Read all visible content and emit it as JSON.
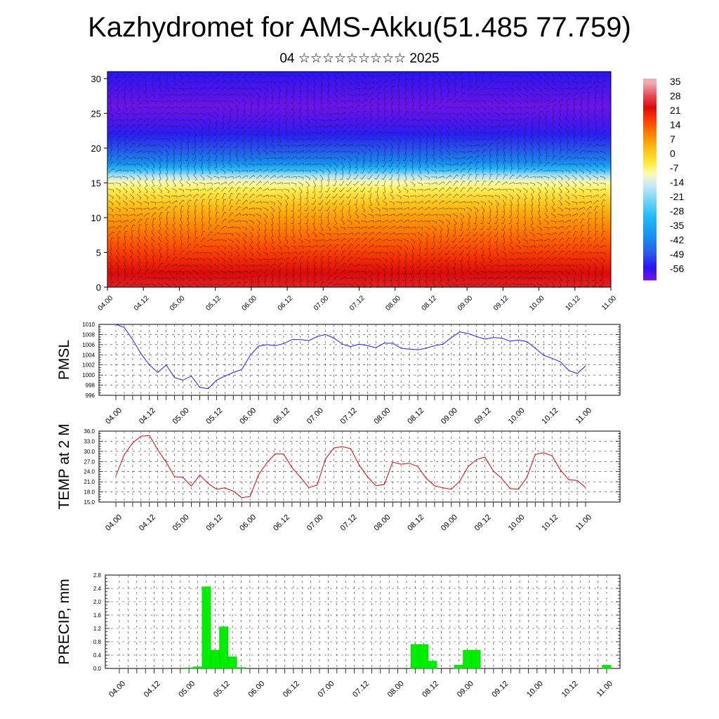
{
  "title": "Kazhydromet for AMS-Akku(51.485 77.759)",
  "subtitle": "04 ☆☆☆☆☆☆☆☆☆ 2025",
  "time_labels": [
    "04.00",
    "04.12",
    "05.00",
    "05.12",
    "06.00",
    "06.12",
    "07.00",
    "07.12",
    "08.00",
    "08.12",
    "09.00",
    "09.12",
    "10.00",
    "10.12",
    "11.00"
  ],
  "chart_data": [
    {
      "type": "heatmap",
      "name": "",
      "x": [
        "04.00",
        "04.12",
        "05.00",
        "05.12",
        "06.00",
        "06.12",
        "07.00",
        "07.12",
        "08.00",
        "08.12",
        "09.00",
        "09.12",
        "10.00",
        "10.12",
        "11.00"
      ],
      "ylim": [
        0,
        31
      ],
      "yticks": [
        0,
        5,
        10,
        15,
        20,
        25,
        30
      ],
      "overlay": "wind barbs",
      "colorbar": {
        "labels": [
          "35",
          "28",
          "21",
          "14",
          "7",
          "0",
          "-7",
          "-14",
          "-21",
          "-28",
          "-35",
          "-42",
          "-49",
          "-56"
        ],
        "range": [
          -60,
          38
        ]
      },
      "profile": {
        "levels": [
          0,
          2,
          4,
          6,
          8,
          10,
          12,
          14,
          15,
          16,
          17,
          18,
          20,
          22,
          24,
          26,
          28,
          31
        ],
        "values": [
          26,
          24,
          20,
          16,
          12,
          8,
          3,
          -4,
          -8,
          -16,
          -30,
          -40,
          -48,
          -53,
          -57,
          -59,
          -57,
          -54
        ]
      }
    },
    {
      "type": "line",
      "ylabel": "PMSL",
      "ylim": [
        996,
        1010
      ],
      "yticks": [
        "996",
        "998",
        "1000",
        "1002",
        "1004",
        "1006",
        "1008",
        "1010"
      ],
      "color": "#1c1cff",
      "values": [
        1010,
        1009.4,
        1007,
        1004.2,
        1002,
        1000.5,
        1002,
        999.5,
        999,
        999.8,
        997.6,
        997.3,
        999,
        999.8,
        1000.5,
        1001.1,
        1003.8,
        1005.7,
        1006,
        1005.8,
        1006.2,
        1007,
        1007,
        1006.8,
        1007.6,
        1008,
        1007.3,
        1006.1,
        1005.6,
        1006.1,
        1005.8,
        1005.4,
        1006.3,
        1006.3,
        1005.3,
        1005.1,
        1005,
        1005.3,
        1005.8,
        1006.1,
        1007.4,
        1008.5,
        1008.2,
        1007.6,
        1007.1,
        1007.4,
        1007.3,
        1006.7,
        1006.9,
        1006.6,
        1005.3,
        1003.9,
        1003.3,
        1002.6,
        1000.9,
        1000.3,
        1001.8
      ]
    },
    {
      "type": "line",
      "ylabel": "TEMP at 2 M",
      "ylim": [
        15,
        36
      ],
      "yticks": [
        "15.0",
        "18.0",
        "21.0",
        "24.0",
        "27.0",
        "30.0",
        "33.0",
        "36.0"
      ],
      "color": "#e00000",
      "values": [
        22.7,
        29,
        32.5,
        34.5,
        34.7,
        30.5,
        26.8,
        22.5,
        22.3,
        19.7,
        23,
        20.5,
        18.8,
        19.2,
        18.2,
        16.3,
        16.6,
        23,
        26.6,
        29.3,
        29.2,
        25.2,
        22.4,
        19.3,
        20,
        27.8,
        31,
        31.4,
        30.8,
        26,
        22.5,
        19.8,
        20.2,
        26.8,
        26.2,
        26.5,
        25.5,
        22,
        19.8,
        19.2,
        18.8,
        21.2,
        25.5,
        27.6,
        28.3,
        24.2,
        22,
        19,
        18.8,
        22.3,
        29.1,
        29.6,
        28.7,
        24.5,
        21.6,
        21.4,
        19.3
      ]
    },
    {
      "type": "bar",
      "ylabel": "PRECIP, mm",
      "ylim": [
        0,
        2.8
      ],
      "yticks": [
        "0.0",
        "0.4",
        "0.8",
        "1.2",
        "1.6",
        "2.0",
        "2.4",
        "2.8"
      ],
      "color": "#00ee00",
      "values": [
        0,
        0,
        0,
        0,
        0,
        0,
        0,
        0,
        0.02,
        0.05,
        2.45,
        0.55,
        1.25,
        0.35,
        0.03,
        0,
        0,
        0,
        0,
        0,
        0,
        0,
        0,
        0,
        0,
        0,
        0,
        0,
        0,
        0,
        0,
        0,
        0,
        0,
        0.72,
        0.72,
        0.22,
        0,
        0,
        0.1,
        0.55,
        0.55,
        0,
        0,
        0,
        0,
        0,
        0,
        0,
        0,
        0,
        0,
        0,
        0,
        0,
        0,
        0.1
      ]
    }
  ]
}
